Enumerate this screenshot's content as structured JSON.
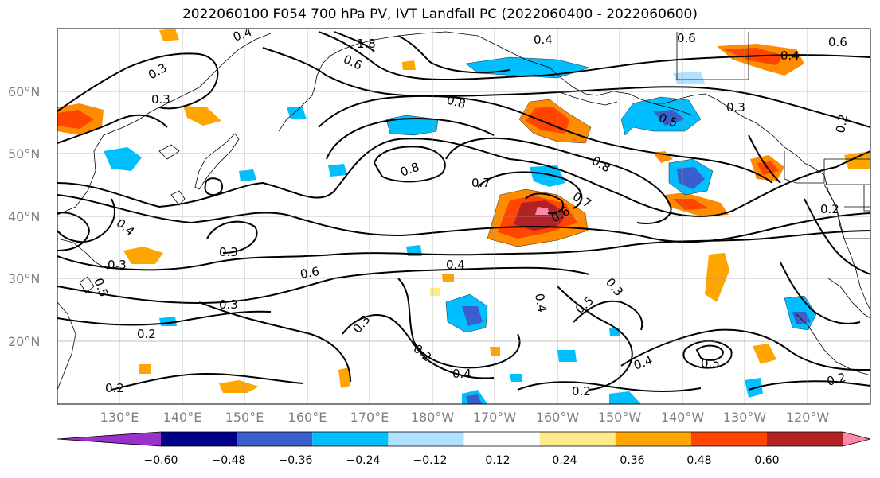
{
  "title": "2022060100 F054 700 hPa PV, IVT Landfall PC (2022060400 - 2022060600)",
  "lat_labels": [
    "60°N",
    "50°N",
    "40°N",
    "30°N",
    "20°N"
  ],
  "lon_labels": [
    "130°E",
    "140°E",
    "150°E",
    "160°E",
    "170°E",
    "180°W",
    "170°W",
    "160°W",
    "150°W",
    "140°W",
    "130°W",
    "120°W"
  ],
  "contour_labels": [
    "0.4",
    "0.3",
    "1.8",
    "0.6",
    "0.4",
    "0.6",
    "0.4",
    "0.8",
    "0.5",
    "0.3",
    "0.2",
    "0.3",
    "0.8",
    "0.7",
    "0.8",
    "0.7",
    "0.6",
    "0.4",
    "0.2",
    "0.3",
    "0.6",
    "0.4",
    "0.3",
    "0.5",
    "0.3",
    "0.3",
    "0.4",
    "0.5",
    "0.4",
    "0.2",
    "0.3",
    "0.2",
    "0.2",
    "0.2",
    "0.4",
    "0.5",
    "0.2",
    "0.6"
  ],
  "colorbar": {
    "ticks": [
      "−0.60",
      "−0.48",
      "−0.36",
      "−0.24",
      "−0.12",
      "0.12",
      "0.24",
      "0.36",
      "0.48",
      "0.60"
    ],
    "colors": [
      "#9932cc",
      "#00008b",
      "#3a5fcd",
      "#00bfff",
      "#b0e2ff",
      "#ffffff",
      "#ffea8a",
      "#ffa500",
      "#ff4500",
      "#b22222",
      "#ff88aa"
    ]
  }
}
